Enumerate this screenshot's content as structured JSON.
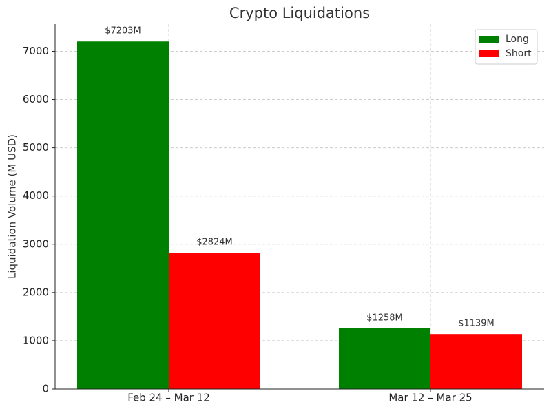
{
  "chart_data": {
    "type": "bar",
    "title": "Crypto Liquidations",
    "ylabel": "Liquidation Volume (M USD)",
    "categories": [
      "Feb 24 – Mar 12",
      "Mar 12 – Mar 25"
    ],
    "series": [
      {
        "name": "Long",
        "color": "#008000",
        "values": [
          7203,
          1258
        ],
        "value_labels": [
          "$7203M",
          "$1258M"
        ]
      },
      {
        "name": "Short",
        "color": "#ff0000",
        "values": [
          2824,
          1139
        ],
        "value_labels": [
          "$2824M",
          "$1139M"
        ]
      }
    ],
    "ylim": [
      0,
      7563
    ],
    "yticks": [
      0,
      1000,
      2000,
      3000,
      4000,
      5000,
      6000,
      7000
    ],
    "grid": true,
    "legend": "upper right"
  }
}
